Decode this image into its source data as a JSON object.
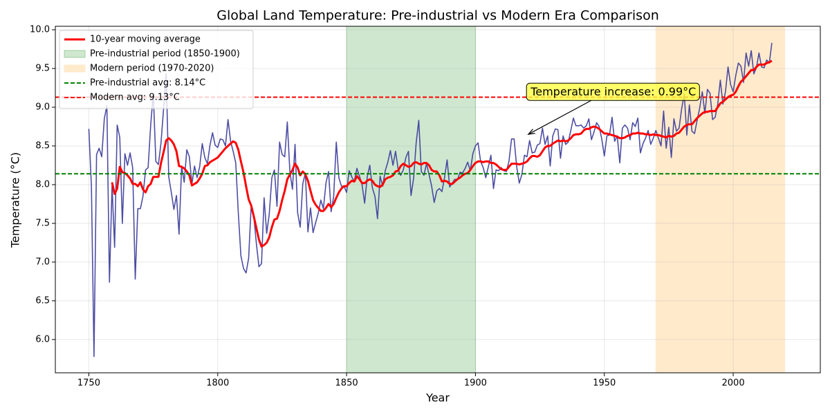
{
  "chart_data": {
    "type": "line",
    "title": "Global Land Temperature: Pre-industrial vs Modern Era Comparison",
    "xlabel": "Year",
    "ylabel": "Temperature (°C)",
    "xlim": [
      1737,
      2033.8
    ],
    "ylim": [
      5.57,
      10.045
    ],
    "xticks": [
      1750,
      1800,
      1850,
      1900,
      1950,
      2000
    ],
    "yticks": [
      {
        "value": 6,
        "label": "6.0"
      },
      6.5,
      {
        "value": 7,
        "label": "7.0"
      },
      7.5,
      {
        "value": 8,
        "label": "8.0"
      },
      8.5,
      {
        "value": 9,
        "label": "9.0"
      },
      9.5,
      {
        "value": 10,
        "label": "10.0"
      }
    ],
    "grid": true,
    "legend": "upper left",
    "x": [
      1750,
      1751,
      1752,
      1753,
      1754,
      1755,
      1756,
      1757,
      1758,
      1759,
      1760,
      1761,
      1762,
      1763,
      1764,
      1765,
      1766,
      1767,
      1768,
      1769,
      1770,
      1771,
      1772,
      1773,
      1774,
      1775,
      1776,
      1777,
      1778,
      1779,
      1780,
      1781,
      1782,
      1783,
      1784,
      1785,
      1786,
      1787,
      1788,
      1789,
      1790,
      1791,
      1792,
      1793,
      1794,
      1795,
      1796,
      1797,
      1798,
      1799,
      1800,
      1801,
      1802,
      1803,
      1804,
      1805,
      1806,
      1807,
      1808,
      1809,
      1810,
      1811,
      1812,
      1813,
      1814,
      1815,
      1816,
      1817,
      1818,
      1819,
      1820,
      1821,
      1822,
      1823,
      1824,
      1825,
      1826,
      1827,
      1828,
      1829,
      1830,
      1831,
      1832,
      1833,
      1834,
      1835,
      1836,
      1837,
      1838,
      1839,
      1840,
      1841,
      1842,
      1843,
      1844,
      1845,
      1846,
      1847,
      1848,
      1849,
      1850,
      1851,
      1852,
      1853,
      1854,
      1855,
      1856,
      1857,
      1858,
      1859,
      1860,
      1861,
      1862,
      1863,
      1864,
      1865,
      1866,
      1867,
      1868,
      1869,
      1870,
      1871,
      1872,
      1873,
      1874,
      1875,
      1876,
      1877,
      1878,
      1879,
      1880,
      1881,
      1882,
      1883,
      1884,
      1885,
      1886,
      1887,
      1888,
      1889,
      1890,
      1891,
      1892,
      1893,
      1894,
      1895,
      1896,
      1897,
      1898,
      1899,
      1900,
      1901,
      1902,
      1903,
      1904,
      1905,
      1906,
      1907,
      1908,
      1909,
      1910,
      1911,
      1912,
      1913,
      1914,
      1915,
      1916,
      1917,
      1918,
      1919,
      1920,
      1921,
      1922,
      1923,
      1924,
      1925,
      1926,
      1927,
      1928,
      1929,
      1930,
      1931,
      1932,
      1933,
      1934,
      1935,
      1936,
      1937,
      1938,
      1939,
      1940,
      1941,
      1942,
      1943,
      1944,
      1945,
      1946,
      1947,
      1948,
      1949,
      1950,
      1951,
      1952,
      1953,
      1954,
      1955,
      1956,
      1957,
      1958,
      1959,
      1960,
      1961,
      1962,
      1963,
      1964,
      1965,
      1966,
      1967,
      1968,
      1969,
      1970,
      1971,
      1972,
      1973,
      1974,
      1975,
      1976,
      1977,
      1978,
      1979,
      1980,
      1981,
      1982,
      1983,
      1984,
      1985,
      1986,
      1987,
      1988,
      1989,
      1990,
      1991,
      1992,
      1993,
      1994,
      1995,
      1996,
      1997,
      1998,
      1999,
      2000,
      2001,
      2002,
      2003,
      2004,
      2005,
      2006,
      2007,
      2008,
      2009,
      2010,
      2011,
      2012,
      2013,
      2014,
      2015
    ],
    "series": [
      {
        "color": "#3a3a9a",
        "values": [
          8.72,
          7.98,
          5.78,
          8.39,
          8.47,
          8.36,
          8.85,
          9.02,
          6.74,
          7.99,
          7.19,
          8.77,
          8.61,
          7.5,
          8.4,
          8.25,
          8.41,
          8.22,
          6.78,
          7.69,
          7.69,
          7.85,
          8.19,
          8.22,
          8.77,
          9.18,
          8.3,
          8.26,
          8.54,
          8.98,
          9.43,
          8.1,
          7.9,
          7.68,
          7.86,
          7.36,
          8.24,
          8.03,
          8.45,
          8.36,
          8.01,
          8.24,
          8.09,
          8.23,
          8.53,
          8.35,
          8.27,
          8.51,
          8.67,
          8.51,
          8.48,
          8.59,
          8.58,
          8.5,
          8.84,
          8.56,
          8.43,
          8.28,
          7.63,
          7.08,
          6.92,
          6.86,
          7.05,
          7.74,
          7.59,
          7.24,
          6.94,
          6.98,
          7.83,
          7.37,
          7.62,
          8.09,
          8.19,
          7.72,
          8.55,
          8.39,
          8.36,
          8.81,
          8.17,
          7.94,
          8.52,
          7.64,
          7.45,
          8.01,
          8.15,
          7.39,
          7.7,
          7.38,
          7.51,
          7.63,
          7.8,
          7.69,
          8.02,
          8.17,
          7.65,
          7.85,
          8.55,
          8.09,
          7.98,
          7.98,
          7.9,
          8.18,
          8.1,
          8.04,
          8.21,
          8.11,
          8.0,
          7.76,
          8.1,
          8.25,
          7.96,
          7.85,
          7.56,
          8.11,
          7.98,
          8.18,
          8.29,
          8.44,
          8.25,
          8.43,
          8.2,
          8.12,
          8.19,
          8.35,
          8.43,
          7.86,
          8.08,
          8.54,
          8.83,
          8.17,
          8.12,
          8.27,
          8.13,
          7.98,
          7.77,
          7.92,
          7.95,
          7.91,
          8.09,
          8.32,
          7.97,
          8.02,
          8.07,
          8.06,
          8.16,
          8.15,
          8.21,
          8.29,
          8.18,
          8.4,
          8.5,
          8.54,
          8.3,
          8.22,
          8.09,
          8.23,
          8.38,
          7.95,
          8.19,
          8.18,
          8.22,
          8.18,
          8.17,
          8.3,
          8.59,
          8.59,
          8.23,
          8.02,
          8.13,
          8.38,
          8.36,
          8.57,
          8.41,
          8.42,
          8.51,
          8.53,
          8.73,
          8.52,
          8.63,
          8.24,
          8.63,
          8.72,
          8.71,
          8.34,
          8.63,
          8.52,
          8.55,
          8.7,
          8.86,
          8.76,
          8.76,
          8.77,
          8.73,
          8.76,
          8.85,
          8.58,
          8.68,
          8.8,
          8.75,
          8.59,
          8.37,
          8.63,
          8.64,
          8.87,
          8.56,
          8.63,
          8.28,
          8.73,
          8.77,
          8.73,
          8.58,
          8.8,
          8.75,
          8.86,
          8.41,
          8.53,
          8.6,
          8.7,
          8.52,
          8.6,
          8.7,
          8.6,
          8.5,
          8.95,
          8.47,
          8.74,
          8.35,
          8.85,
          8.69,
          8.73,
          8.98,
          9.17,
          8.64,
          9.03,
          8.69,
          8.66,
          8.83,
          8.99,
          9.2,
          8.92,
          9.23,
          9.18,
          8.84,
          8.87,
          9.04,
          9.35,
          9.04,
          9.2,
          9.52,
          9.29,
          9.2,
          9.41,
          9.57,
          9.53,
          9.32,
          9.7,
          9.53,
          9.73,
          9.43,
          9.51,
          9.7,
          9.52,
          9.51,
          9.61,
          9.57,
          9.83
        ]
      },
      {
        "name": "10-year moving average",
        "color": "#ff0000",
        "values": [
          null,
          null,
          null,
          null,
          null,
          null,
          null,
          null,
          null,
          8.03,
          7.88,
          7.95,
          8.23,
          8.16,
          8.15,
          8.12,
          8.08,
          8.01,
          8.01,
          7.98,
          8.03,
          7.94,
          7.9,
          7.98,
          8.01,
          8.1,
          8.1,
          8.1,
          8.28,
          8.42,
          8.57,
          8.6,
          8.57,
          8.52,
          8.43,
          8.24,
          8.23,
          8.21,
          8.17,
          8.12,
          7.99,
          8.01,
          8.03,
          8.08,
          8.14,
          8.24,
          8.25,
          8.29,
          8.31,
          8.33,
          8.35,
          8.39,
          8.43,
          8.47,
          8.5,
          8.53,
          8.56,
          8.54,
          8.45,
          8.3,
          8.16,
          7.98,
          7.81,
          7.73,
          7.59,
          7.44,
          7.29,
          7.2,
          7.22,
          7.25,
          7.32,
          7.45,
          7.55,
          7.56,
          7.66,
          7.8,
          7.92,
          8.07,
          8.13,
          8.19,
          8.27,
          8.22,
          8.12,
          8.17,
          8.13,
          8.05,
          7.92,
          7.8,
          7.74,
          7.7,
          7.66,
          7.66,
          7.7,
          7.75,
          7.71,
          7.75,
          7.83,
          7.9,
          7.95,
          7.98,
          7.98,
          8.02,
          8.05,
          8.04,
          8.11,
          8.07,
          8.02,
          8.02,
          8.05,
          8.07,
          8.05,
          8.0,
          7.98,
          7.97,
          8.0,
          8.07,
          8.09,
          8.1,
          8.12,
          8.17,
          8.18,
          8.24,
          8.27,
          8.25,
          8.23,
          8.24,
          8.28,
          8.29,
          8.27,
          8.26,
          8.28,
          8.28,
          8.25,
          8.19,
          8.17,
          8.17,
          8.12,
          8.04,
          8.05,
          8.04,
          8.01,
          8.01,
          8.04,
          8.07,
          8.09,
          8.12,
          8.14,
          8.15,
          8.19,
          8.24,
          8.28,
          8.3,
          8.3,
          8.29,
          8.3,
          8.3,
          8.28,
          8.28,
          8.26,
          8.23,
          8.2,
          8.19,
          8.19,
          8.23,
          8.27,
          8.27,
          8.27,
          8.26,
          8.27,
          8.28,
          8.3,
          8.34,
          8.37,
          8.37,
          8.36,
          8.38,
          8.43,
          8.48,
          8.5,
          8.5,
          8.53,
          8.55,
          8.57,
          8.56,
          8.57,
          8.56,
          8.57,
          8.6,
          8.64,
          8.65,
          8.65,
          8.66,
          8.7,
          8.72,
          8.72,
          8.74,
          8.75,
          8.74,
          8.72,
          8.69,
          8.66,
          8.66,
          8.65,
          8.64,
          8.63,
          8.62,
          8.6,
          8.6,
          8.61,
          8.63,
          8.64,
          8.66,
          8.66,
          8.67,
          8.66,
          8.66,
          8.65,
          8.65,
          8.64,
          8.65,
          8.64,
          8.64,
          8.63,
          8.62,
          8.61,
          8.63,
          8.62,
          8.63,
          8.66,
          8.67,
          8.71,
          8.75,
          8.77,
          8.78,
          8.78,
          8.82,
          8.86,
          8.89,
          8.92,
          8.94,
          8.94,
          8.95,
          8.95,
          8.95,
          9.0,
          9.05,
          9.07,
          9.1,
          9.13,
          9.15,
          9.16,
          9.2,
          9.27,
          9.33,
          9.36,
          9.4,
          9.44,
          9.48,
          9.48,
          9.52,
          9.55,
          9.55,
          9.55,
          9.57,
          9.58,
          9.6
        ]
      }
    ],
    "spans": [
      {
        "name": "Pre-industrial period (1850-1900)",
        "start": 1850,
        "end": 1900,
        "color": "#9fcf9f"
      },
      {
        "name": "Modern period (1970-2020)",
        "start": 1970,
        "end": 2020,
        "color": "#ffeacc"
      }
    ],
    "hlines": [
      {
        "name": "Pre-industrial avg: 8.14°C",
        "value": 8.14,
        "color": "#008000"
      },
      {
        "name": "Modern avg: 9.13°C",
        "value": 9.13,
        "color": "#ff0000"
      }
    ],
    "annotation": {
      "text": "Temperature increase: 0.99°C",
      "xy": [
        1920.5,
        8.65
      ],
      "xytext": [
        1953.5,
        9.19
      ],
      "color": "#ffff44"
    }
  }
}
